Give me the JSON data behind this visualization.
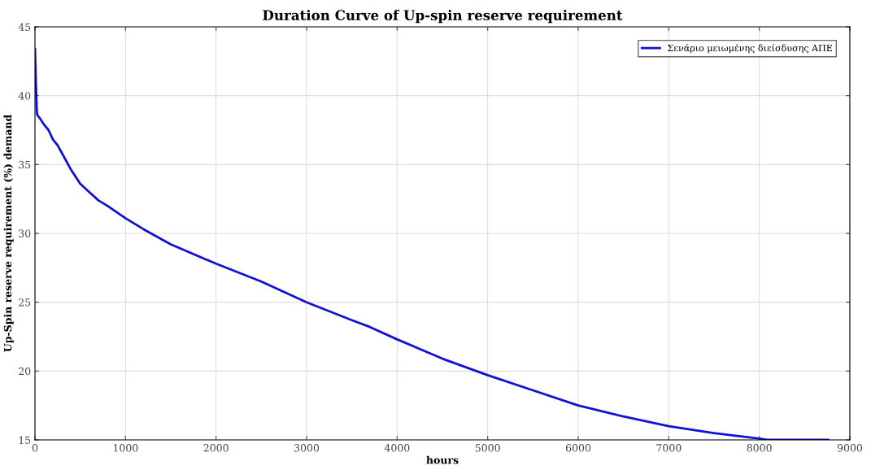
{
  "chart_data": {
    "type": "line",
    "title": "Duration Curve of Up-spin reserve requirement",
    "xlabel": "hours",
    "ylabel": "Up-Spin reserve requirement (%) demand",
    "series": [
      {
        "name": "Σενάριο μειωμένης διείσδυσης ΑΠΕ",
        "color": "#1010d8",
        "x": [
          0,
          10,
          20,
          25,
          50,
          100,
          150,
          200,
          250,
          300,
          400,
          500,
          600,
          700,
          800,
          1000,
          1200,
          1500,
          2000,
          2500,
          3000,
          3500,
          3700,
          4000,
          4500,
          5000,
          5500,
          6000,
          6500,
          7000,
          7500,
          8000,
          8100,
          8760
        ],
        "values": [
          43.4,
          41.0,
          39.0,
          38.6,
          38.4,
          37.9,
          37.5,
          36.8,
          36.4,
          35.8,
          34.6,
          33.6,
          33.0,
          32.4,
          32.0,
          31.1,
          30.3,
          29.2,
          27.8,
          26.5,
          25.0,
          23.7,
          23.2,
          22.3,
          20.9,
          19.7,
          18.6,
          17.5,
          16.7,
          16.0,
          15.5,
          15.1,
          15.0,
          15.0
        ]
      }
    ],
    "xlim": [
      0,
      9000
    ],
    "xticks": [
      0,
      1000,
      2000,
      3000,
      4000,
      5000,
      6000,
      7000,
      8000,
      9000
    ],
    "ylim": [
      15,
      45
    ],
    "yticks": [
      15,
      20,
      25,
      30,
      35,
      40,
      45
    ],
    "grid": true,
    "legend": "top right",
    "marker": "none",
    "line_style": "solid"
  }
}
